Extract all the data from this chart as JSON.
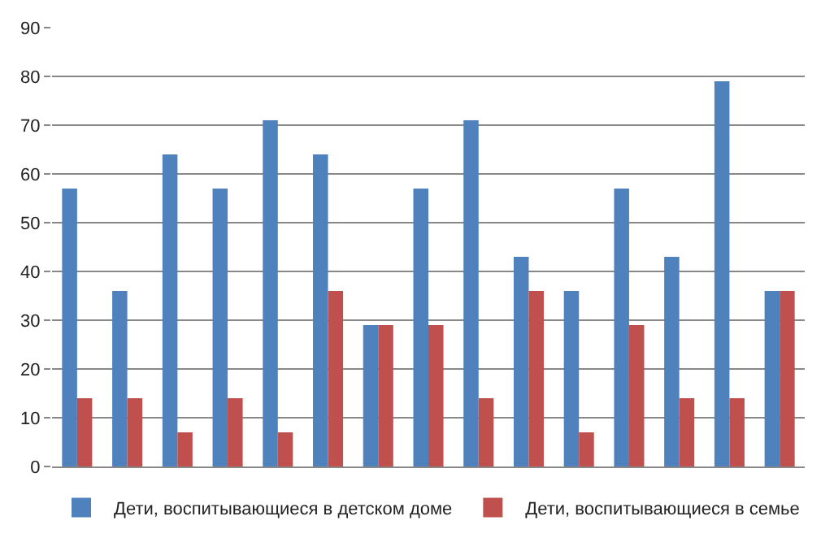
{
  "chart_data": {
    "type": "bar",
    "categories": [
      null,
      null,
      null,
      null,
      null,
      null,
      null,
      null,
      null,
      null,
      null,
      null,
      null,
      null,
      null
    ],
    "series": [
      {
        "name": "Дети, воспитывающиеся в детском доме",
        "color": "#4f81bd",
        "values": [
          57,
          36,
          64,
          57,
          71,
          64,
          29,
          57,
          71,
          43,
          36,
          57,
          43,
          79,
          36
        ]
      },
      {
        "name": "Дети, воспитывающиеся в семье",
        "color": "#c0504d",
        "values": [
          14,
          14,
          7,
          14,
          7,
          36,
          29,
          29,
          14,
          36,
          7,
          29,
          14,
          14,
          36
        ]
      }
    ],
    "ylim": [
      0,
      90
    ],
    "yticks": [
      0,
      10,
      20,
      30,
      40,
      50,
      60,
      70,
      80,
      90
    ],
    "grid": "y",
    "legend": "bottom"
  }
}
